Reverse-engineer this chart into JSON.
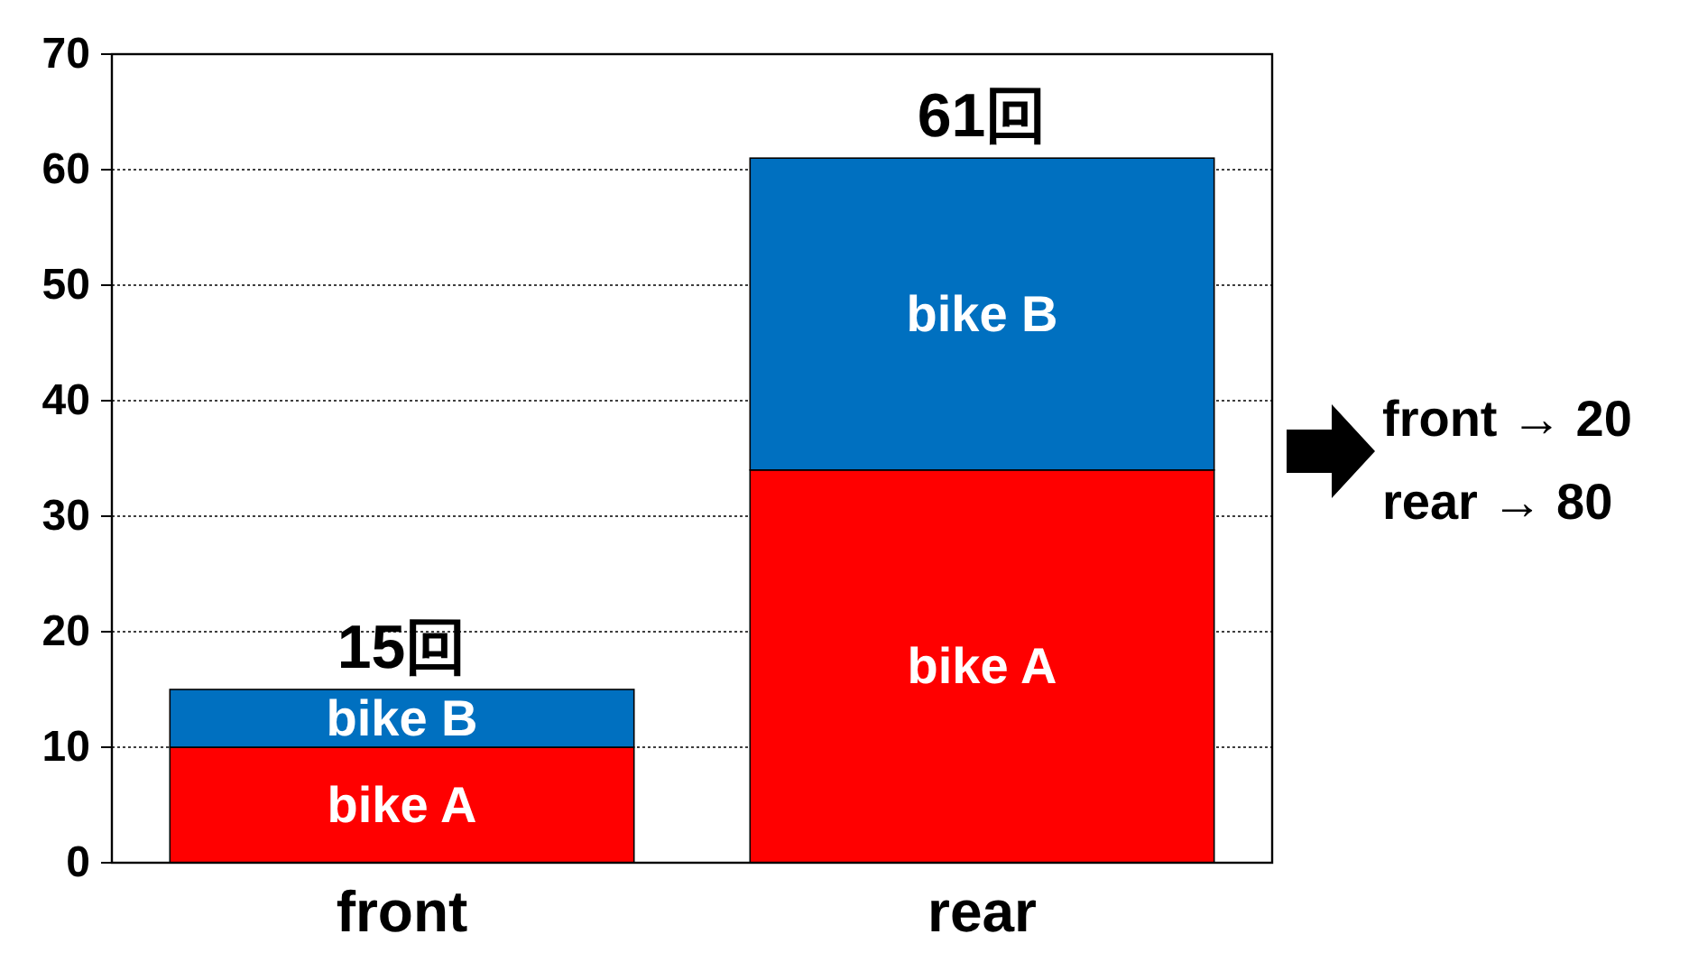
{
  "chart_data": {
    "type": "bar",
    "stacked": true,
    "categories": [
      "front",
      "rear"
    ],
    "series": [
      {
        "name": "bike A",
        "color": "#ff0000",
        "values": [
          10,
          34
        ]
      },
      {
        "name": "bike B",
        "color": "#0070c0",
        "values": [
          5,
          27
        ]
      }
    ],
    "ylim": [
      0,
      70
    ],
    "yticks": [
      0,
      10,
      20,
      30,
      40,
      50,
      60,
      70
    ],
    "grid": "y",
    "totals": [
      "15回",
      "61回"
    ],
    "annotations": [
      "front → 20",
      "rear → 80"
    ]
  }
}
